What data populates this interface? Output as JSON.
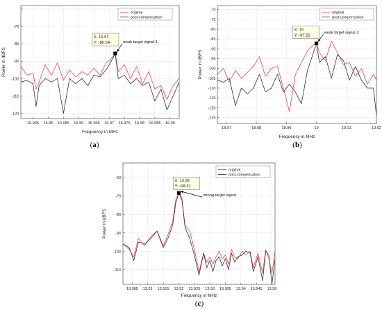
{
  "chart_data": [
    {
      "panel": "a",
      "caption": "(a)",
      "type": "line",
      "xlabel": "Frequency in MHz",
      "ylabel": "Power in dBFS",
      "xlim": [
        16.941,
        16.993
      ],
      "ylim": [
        -123,
        -58
      ],
      "xticks": [
        16.945,
        16.95,
        16.955,
        16.96,
        16.965,
        16.97,
        16.975,
        16.98,
        16.985,
        16.99
      ],
      "xtick_labels": [
        "16.945",
        "16.95",
        "16.955",
        "16.96",
        "16.965",
        "16.97",
        "16.975",
        "16.98",
        "16.985",
        "16.99"
      ],
      "yticks": [
        -120,
        -110,
        -100,
        -90,
        -80,
        -70,
        -60
      ],
      "ytick_labels": [
        "-120",
        "-110",
        "-100",
        "-90",
        "-80",
        "-70",
        ""
      ],
      "grid": true,
      "legend_position": "top-right",
      "series": [
        {
          "name": "original",
          "color": "#e8474a",
          "x": [
            16.941,
            16.943,
            16.945,
            16.946,
            16.947,
            16.949,
            16.951,
            16.953,
            16.955,
            16.957,
            16.959,
            16.961,
            16.963,
            16.965,
            16.967,
            16.969,
            16.971,
            16.972,
            16.973,
            16.975,
            16.977,
            16.979,
            16.981,
            16.983,
            16.985,
            16.987,
            16.989,
            16.991,
            16.993
          ],
          "y": [
            -93,
            -98,
            -97,
            -106,
            -102,
            -92,
            -98,
            -91,
            -101,
            -95,
            -99,
            -96,
            -98,
            -94,
            -98,
            -91,
            -88,
            -85.54,
            -96,
            -92,
            -100,
            -93,
            -103,
            -96,
            -106,
            -104,
            -112,
            -104,
            -100
          ]
        },
        {
          "name": "post-compensation",
          "color": "#303030",
          "x": [
            16.941,
            16.943,
            16.945,
            16.946,
            16.947,
            16.949,
            16.951,
            16.953,
            16.955,
            16.957,
            16.959,
            16.961,
            16.963,
            16.965,
            16.967,
            16.969,
            16.971,
            16.972,
            16.973,
            16.975,
            16.977,
            16.979,
            16.981,
            16.983,
            16.985,
            16.987,
            16.989,
            16.991,
            16.993
          ],
          "y": [
            -102,
            -101,
            -103,
            -116,
            -104,
            -100,
            -102,
            -100,
            -120,
            -100,
            -103,
            -100,
            -104,
            -98,
            -99,
            -95,
            -89,
            -85.54,
            -100,
            -98,
            -103,
            -100,
            -104,
            -102,
            -113,
            -106,
            -118,
            -110,
            -102
          ]
        }
      ],
      "datatip": {
        "x_text": "X: 16.97",
        "y_text": "Y: -85.54",
        "x": 16.972,
        "y": -85.54
      },
      "annotation": {
        "text": "weak target signal-1"
      }
    },
    {
      "panel": "b",
      "caption": "(b)",
      "type": "line",
      "xlabel": "Frequency in MHz",
      "ylabel": "Power in dBFS",
      "xlim": [
        18.967,
        19.02
      ],
      "ylim": [
        -128,
        -68
      ],
      "xticks": [
        18.97,
        18.98,
        18.99,
        19.0,
        19.01,
        19.02
      ],
      "xtick_labels": [
        "18.97",
        "18.98",
        "18.99",
        "19",
        "19.01",
        "19.02"
      ],
      "yticks": [
        -125,
        -120,
        -115,
        -110,
        -105,
        -100,
        -95,
        -90,
        -85,
        -80,
        -75,
        -70
      ],
      "ytick_labels": [
        "-125",
        "-120",
        "-115",
        "-110",
        "-105",
        "-100",
        "-95",
        "-90",
        "-85",
        "-80",
        "-75",
        "-70"
      ],
      "grid": true,
      "legend_position": "top-right",
      "series": [
        {
          "name": "original",
          "color": "#e8474a",
          "x": [
            18.967,
            18.969,
            18.971,
            18.973,
            18.975,
            18.977,
            18.979,
            18.981,
            18.983,
            18.985,
            18.987,
            18.989,
            18.991,
            18.993,
            18.995,
            18.997,
            18.999,
            19.0,
            19.001,
            19.003,
            19.005,
            19.007,
            19.009,
            19.011,
            19.013,
            19.015,
            19.017,
            19.019,
            19.02
          ],
          "y": [
            -103,
            -100,
            -107,
            -101,
            -105,
            -102,
            -99,
            -94,
            -104,
            -100,
            -99,
            -110,
            -122,
            -103,
            -97,
            -91,
            -88,
            -87.22,
            -92,
            -96,
            -86,
            -92,
            -98,
            -97,
            -104,
            -100,
            -108,
            -103,
            -106
          ]
        },
        {
          "name": "post-compensation",
          "color": "#303030",
          "x": [
            18.967,
            18.969,
            18.971,
            18.973,
            18.975,
            18.977,
            18.979,
            18.981,
            18.983,
            18.985,
            18.987,
            18.989,
            18.991,
            18.993,
            18.995,
            18.997,
            18.999,
            19.0,
            19.001,
            19.003,
            19.005,
            19.007,
            19.009,
            19.011,
            19.013,
            19.015,
            19.017,
            19.019,
            19.02
          ],
          "y": [
            -106,
            -107,
            -105,
            -119,
            -110,
            -113,
            -110,
            -103,
            -112,
            -110,
            -103,
            -112,
            -108,
            -112,
            -118,
            -101,
            -92,
            -87.22,
            -97,
            -94,
            -105,
            -93,
            -96,
            -106,
            -99,
            -106,
            -110,
            -110,
            -124
          ]
        }
      ],
      "datatip": {
        "x_text": "X: 19",
        "y_text": "Y: -87.22",
        "x": 19.0,
        "y": -87.22
      },
      "annotation": {
        "text": "weak target signal-2"
      }
    },
    {
      "panel": "c",
      "caption": "(c)",
      "type": "line",
      "xlabel": "Frequency in MHz",
      "ylabel": "Power in dBFS",
      "xlim": [
        13.902,
        13.951
      ],
      "ylim": [
        -118,
        -52
      ],
      "xticks": [
        13.905,
        13.91,
        13.915,
        13.92,
        13.925,
        13.93,
        13.935,
        13.94,
        13.945,
        13.95
      ],
      "xtick_labels": [
        "13.905",
        "13.91",
        "13.915",
        "13.92",
        "13.925",
        "13.93",
        "13.935",
        "13.94",
        "13.945",
        "13.95"
      ],
      "yticks": [
        -110,
        -100,
        -90,
        -80,
        -70,
        -60
      ],
      "ytick_labels": [
        "-110",
        "-100",
        "-90",
        "-80",
        "-70",
        "-60"
      ],
      "grid": true,
      "legend_position": "top-right",
      "series": [
        {
          "name": "original",
          "color": "#e8474a",
          "x": [
            13.902,
            13.904,
            13.9055,
            13.907,
            13.909,
            13.911,
            13.913,
            13.915,
            13.9165,
            13.918,
            13.919,
            13.92,
            13.921,
            13.922,
            13.9235,
            13.925,
            13.9265,
            13.928,
            13.929,
            13.93,
            13.931,
            13.932,
            13.933,
            13.934,
            13.935,
            13.936,
            13.937,
            13.938,
            13.939,
            13.9405,
            13.9415,
            13.943,
            13.944,
            13.9455,
            13.947,
            13.948,
            13.949,
            13.95,
            13.951
          ],
          "y": [
            -96,
            -99,
            -103,
            -93,
            -97,
            -92,
            -89,
            -97,
            -91,
            -84,
            -72,
            -68.31,
            -71,
            -86,
            -89,
            -99,
            -111,
            -101,
            -106,
            -103,
            -107,
            -103,
            -100,
            -104,
            -102,
            -107,
            -99,
            -103,
            -104,
            -100,
            -102,
            -100,
            -109,
            -101,
            -112,
            -99,
            -104,
            -112,
            -100
          ]
        },
        {
          "name": "post-compensation",
          "color": "#303030",
          "x": [
            13.902,
            13.904,
            13.9055,
            13.907,
            13.909,
            13.911,
            13.913,
            13.915,
            13.9165,
            13.918,
            13.919,
            13.92,
            13.921,
            13.922,
            13.9235,
            13.925,
            13.9265,
            13.928,
            13.929,
            13.93,
            13.931,
            13.932,
            13.933,
            13.934,
            13.935,
            13.936,
            13.937,
            13.938,
            13.939,
            13.9405,
            13.9415,
            13.943,
            13.944,
            13.9455,
            13.947,
            13.948,
            13.949,
            13.95,
            13.951
          ],
          "y": [
            -96,
            -98,
            -105,
            -95,
            -96,
            -93,
            -89,
            -98,
            -93,
            -86,
            -74,
            -68.31,
            -72,
            -87,
            -93,
            -102,
            -113,
            -101,
            -109,
            -105,
            -111,
            -105,
            -103,
            -108,
            -104,
            -110,
            -101,
            -106,
            -103,
            -102,
            -100,
            -101,
            -111,
            -103,
            -116,
            -100,
            -102,
            -118,
            -104
          ]
        }
      ],
      "datatip": {
        "x_text": "X: 13.92",
        "y_text": "Y: -68.31",
        "x": 13.92,
        "y": -68.31
      },
      "annotation": {
        "text": "strong target signal"
      }
    }
  ]
}
